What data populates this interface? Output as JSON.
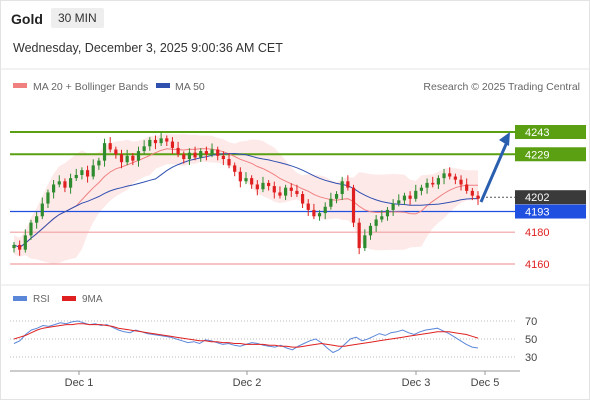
{
  "header": {
    "instrument": "Gold",
    "timeframe": "30 MIN",
    "datetime": "Wednesday, December 3, 2025 9:00:36 AM CET"
  },
  "legend": {
    "ma20_bb": "MA 20 + Bollinger Bands",
    "ma50": "MA 50",
    "credit": "Research © 2025 Trading Central"
  },
  "rsi_legend": {
    "rsi": "RSI",
    "ma9": "9MA"
  },
  "colors": {
    "up": "#2e8b2e",
    "down": "#e02020",
    "ma20": "#f08080",
    "band_fill": "#fde2e2",
    "ma50": "#3050b0",
    "resistance": "#5aa012",
    "support_line": "#f0a0a0",
    "pivot_blue": "#2050e0",
    "arrow": "#2a5fb0",
    "rsi": "#5b87d8",
    "rsi_ma": "#e02020"
  },
  "chart_data": [
    {
      "type": "candlestick",
      "title": "Gold",
      "timeframe": "30 MIN",
      "x_labels": [
        "Dec 1",
        "Dec 2",
        "Dec 3",
        "Dec 5"
      ],
      "ylim": [
        4155,
        4255
      ],
      "levels": [
        {
          "value": 4243,
          "label": "4243",
          "kind": "resistance"
        },
        {
          "value": 4229,
          "label": "4229",
          "kind": "resistance"
        },
        {
          "value": 4202,
          "label": "4202",
          "kind": "last"
        },
        {
          "value": 4193,
          "label": "4193",
          "kind": "pivot"
        },
        {
          "value": 4180,
          "label": "4180",
          "kind": "support"
        },
        {
          "value": 4160,
          "label": "4160",
          "kind": "support"
        }
      ],
      "series": [
        {
          "name": "MA 20 + Bollinger Bands",
          "type": "line+band"
        },
        {
          "name": "MA 50",
          "type": "line"
        }
      ],
      "projection": {
        "from": 4199,
        "to": 4243,
        "direction": "up"
      },
      "close_path": [
        4172,
        4169,
        4178,
        4186,
        4190,
        4198,
        4205,
        4210,
        4212,
        4208,
        4214,
        4216,
        4219,
        4215,
        4222,
        4225,
        4236,
        4232,
        4229,
        4224,
        4228,
        4225,
        4231,
        4234,
        4238,
        4236,
        4239,
        4237,
        4233,
        4229,
        4226,
        4230,
        4227,
        4231,
        4229,
        4232,
        4228,
        4226,
        4222,
        4218,
        4212,
        4214,
        4210,
        4207,
        4211,
        4209,
        4205,
        4203,
        4208,
        4206,
        4204,
        4198,
        4194,
        4190,
        4192,
        4196,
        4201,
        4204,
        4212,
        4208,
        4186,
        4170,
        4178,
        4184,
        4188,
        4190,
        4194,
        4198,
        4200,
        4203,
        4201,
        4206,
        4208,
        4211,
        4210,
        4214,
        4217,
        4215,
        4213,
        4210,
        4206,
        4203,
        4201
      ]
    },
    {
      "type": "line",
      "title": "RSI",
      "series": [
        {
          "name": "RSI"
        },
        {
          "name": "9MA"
        }
      ],
      "y_ticks": [
        70,
        50,
        30
      ],
      "ylim": [
        20,
        80
      ],
      "rsi_values": [
        45,
        48,
        55,
        60,
        62,
        65,
        64,
        66,
        68,
        67,
        69,
        70,
        68,
        66,
        67,
        65,
        66,
        63,
        60,
        58,
        57,
        60,
        58,
        56,
        55,
        54,
        53,
        52,
        50,
        48,
        46,
        47,
        45,
        49,
        48,
        46,
        44,
        45,
        43,
        42,
        44,
        46,
        45,
        43,
        42,
        41,
        43,
        40,
        38,
        42,
        45,
        48,
        50,
        46,
        40,
        35,
        38,
        44,
        50,
        52,
        48,
        50,
        53,
        56,
        54,
        57,
        58,
        60,
        57,
        55,
        58,
        60,
        61,
        62,
        59,
        56,
        52,
        48,
        44,
        41,
        40
      ],
      "ma9_values": [
        50,
        52,
        54,
        57,
        60,
        62,
        63,
        64,
        65,
        66,
        66,
        67,
        67,
        66,
        66,
        66,
        65,
        64,
        62,
        61,
        60,
        59,
        58,
        57,
        56,
        55,
        54,
        53,
        52,
        51,
        50,
        49,
        48,
        48,
        47,
        47,
        46,
        46,
        45,
        45,
        44,
        44,
        44,
        44,
        43,
        43,
        42,
        42,
        41,
        41,
        42,
        43,
        44,
        45,
        44,
        43,
        42,
        42,
        43,
        44,
        45,
        46,
        47,
        48,
        49,
        50,
        51,
        52,
        53,
        54,
        55,
        56,
        57,
        58,
        58,
        58,
        57,
        56,
        55,
        53,
        51
      ]
    }
  ]
}
